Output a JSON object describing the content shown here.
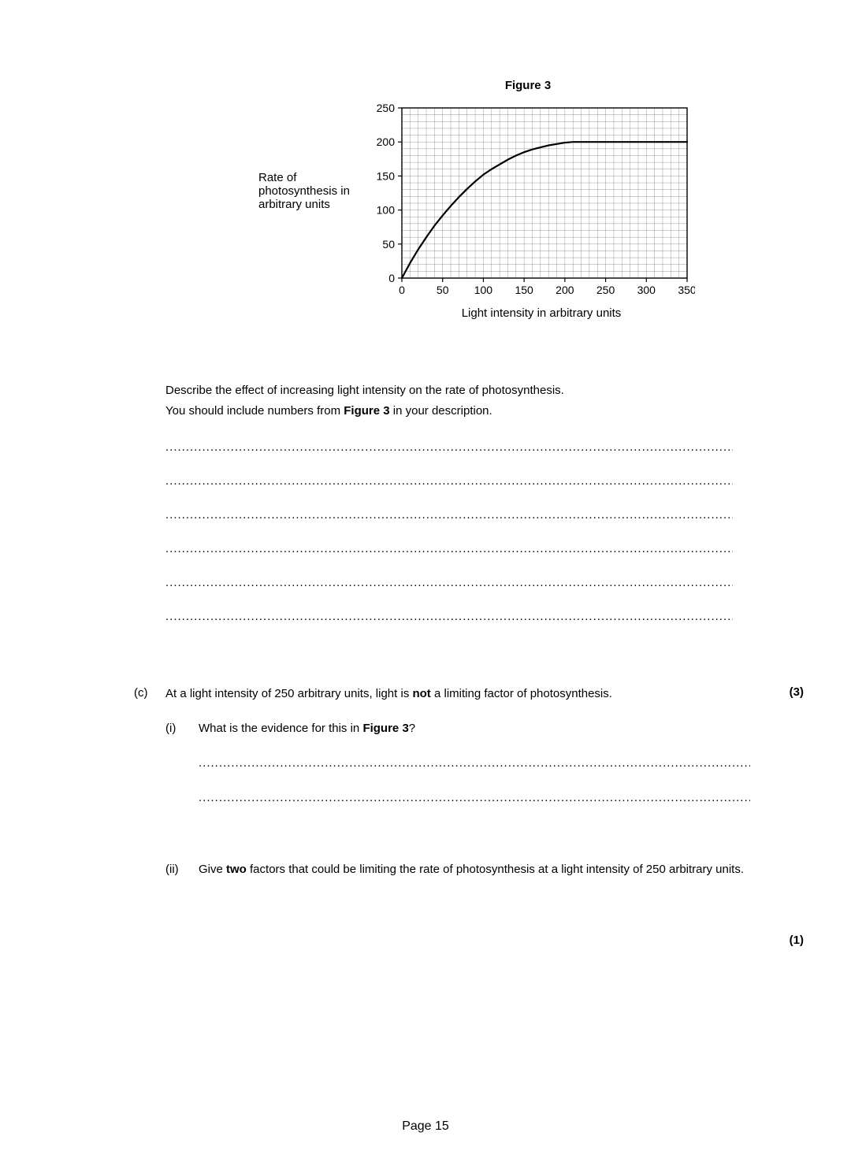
{
  "figure": {
    "title": "Figure 3",
    "ylabel": "Rate of photosynthesis in arbitrary units",
    "xlabel": "Light intensity in arbitrary units",
    "type": "line",
    "xlim": [
      0,
      350
    ],
    "ylim": [
      0,
      250
    ],
    "xtick_step": 50,
    "ytick_step": 50,
    "minor_step_x": 10,
    "minor_step_y": 10,
    "xticklabels": [
      "0",
      "50",
      "100",
      "150",
      "200",
      "250",
      "300",
      "350"
    ],
    "yticklabels": [
      "0",
      "50",
      "100",
      "150",
      "200",
      "250"
    ],
    "background_color": "#ffffff",
    "minor_grid_color": "#808080",
    "major_grid_color": "#000000",
    "axis_color": "#000000",
    "line_color": "#000000",
    "line_width": 2.2,
    "axis_fontsize": 14,
    "label_fontsize": 15,
    "title_fontsize": 15,
    "title_fontweight": "bold",
    "flatline_y": 200,
    "flatline_from_x": 200,
    "curve": [
      [
        0,
        0
      ],
      [
        10,
        22
      ],
      [
        20,
        42
      ],
      [
        30,
        60
      ],
      [
        40,
        77
      ],
      [
        50,
        92
      ],
      [
        60,
        106
      ],
      [
        70,
        119
      ],
      [
        80,
        131
      ],
      [
        90,
        142
      ],
      [
        100,
        152
      ],
      [
        110,
        160
      ],
      [
        120,
        167
      ],
      [
        130,
        174
      ],
      [
        140,
        180
      ],
      [
        150,
        185
      ],
      [
        160,
        189
      ],
      [
        170,
        192
      ],
      [
        180,
        195
      ],
      [
        190,
        197
      ],
      [
        200,
        199
      ],
      [
        210,
        200
      ],
      [
        350,
        200
      ]
    ]
  },
  "question_b": {
    "instruction_line1": "Describe the effect of increasing light intensity on the rate of photosynthesis.",
    "instruction_line2_pre": "You should include numbers from ",
    "instruction_line2_bold": "Figure 3",
    "instruction_line2_post": " in your description.",
    "answer_lines": 6,
    "marks": "(3)"
  },
  "part_c": {
    "letter": "(c)",
    "stem_pre": "At a light intensity of 250 arbitrary units, light is ",
    "stem_bold": "not",
    "stem_post": " a limiting factor of photosynthesis.",
    "i": {
      "num": "(i)",
      "text_pre": "What is the evidence for this in ",
      "text_bold": "Figure 3",
      "text_post": "?",
      "answer_lines": 2,
      "marks": "(1)"
    },
    "ii": {
      "num": "(ii)",
      "text_pre": "Give ",
      "text_bold": "two",
      "text_post": " factors that could be limiting the rate of photosynthesis at a light intensity of 250 arbitrary units."
    }
  },
  "page_number": "Page 15",
  "dots": "........................................................................................................................................................",
  "dots_short": "..............................................................................................................................................."
}
